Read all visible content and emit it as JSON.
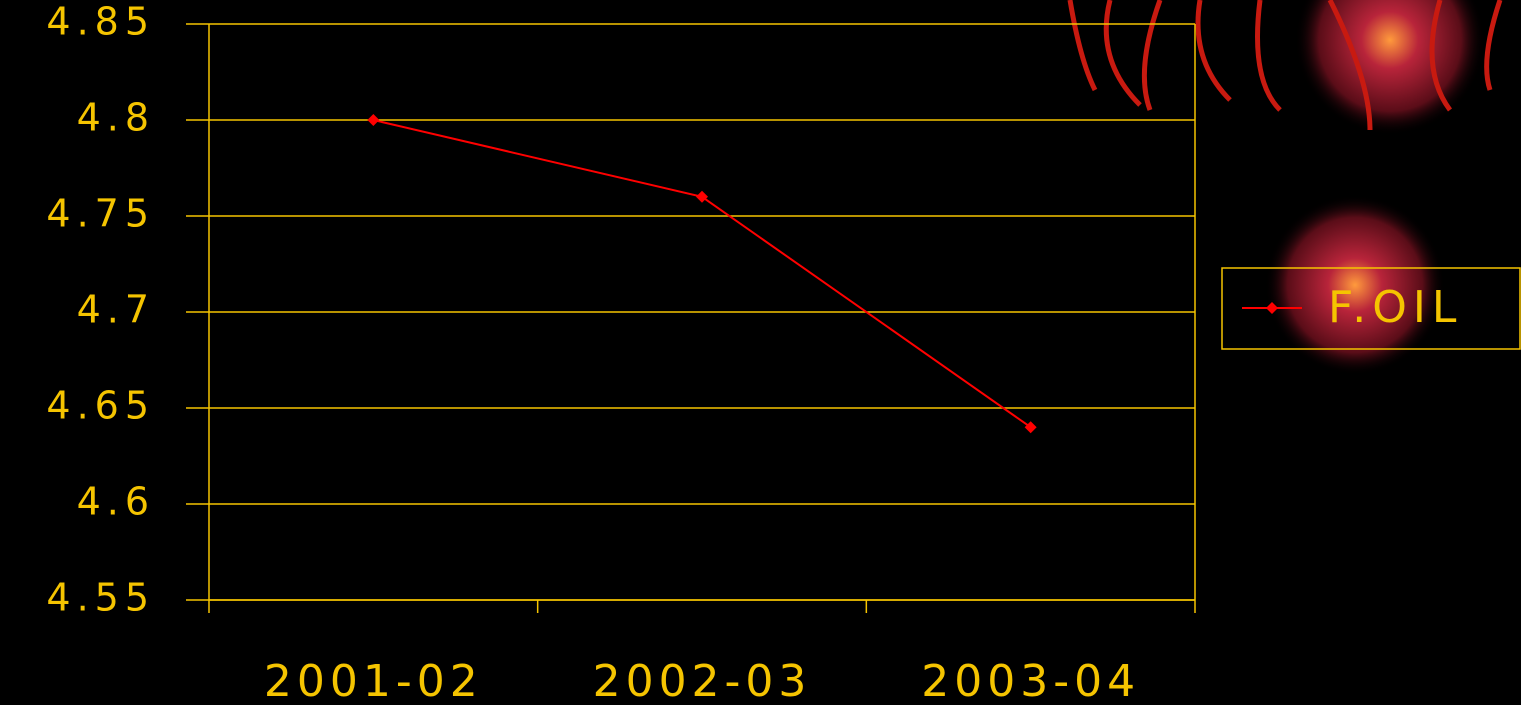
{
  "chart_data": {
    "type": "line",
    "categories": [
      "2001-02",
      "2002-03",
      "2003-04"
    ],
    "series": [
      {
        "name": "F.OIL",
        "color": "#ff0000",
        "values": [
          4.8,
          4.76,
          4.64
        ]
      }
    ],
    "ylim": [
      4.55,
      4.85
    ],
    "yticks": [
      4.55,
      4.6,
      4.65,
      4.7,
      4.75,
      4.8,
      4.85
    ],
    "grid": true,
    "legend": "right",
    "axis_color": "#f5c400"
  }
}
